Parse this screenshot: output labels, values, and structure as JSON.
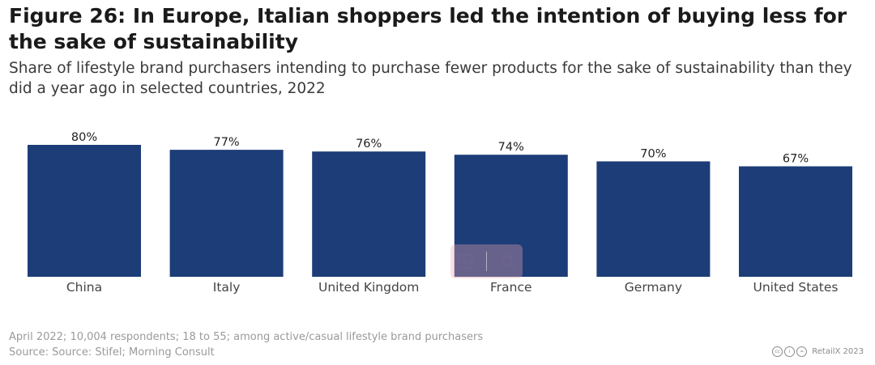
{
  "header": {
    "title": "Figure 26: In Europe, Italian shoppers led the intention of buying less for the sake of sustainability",
    "subtitle": "Share of lifestyle brand purchasers intending to purchase fewer products for the sake of sustainability than they did a year ago in selected countries, 2022"
  },
  "footer": {
    "note": "April 2022; 10,004 respondents; 18 to 55; among active/casual lifestyle brand purchasers",
    "source": "Source: Source: Stifel; Morning Consult",
    "credit": "RetailX 2023"
  },
  "icons": {
    "license": [
      "creative-commons-icon",
      "attribution-icon",
      "no-derivatives-icon"
    ],
    "overlay": [
      "ai-icon",
      "search-icon"
    ]
  },
  "colors": {
    "bar": "#1d3d78",
    "label": "#222222",
    "axis_label": "#444444"
  },
  "chart_data": {
    "type": "bar",
    "categories": [
      "China",
      "Italy",
      "United Kingdom",
      "France",
      "Germany",
      "United States"
    ],
    "values": [
      80,
      77,
      76,
      74,
      70,
      67
    ],
    "data_labels": [
      "80%",
      "77%",
      "76%",
      "74%",
      "70%",
      "67%"
    ],
    "unit": "%",
    "title": "Figure 26: In Europe, Italian shoppers led the intention of buying less for the sake of sustainability",
    "xlabel": "",
    "ylabel": "",
    "ylim": [
      0,
      80
    ],
    "grid": false,
    "legend": "none"
  }
}
